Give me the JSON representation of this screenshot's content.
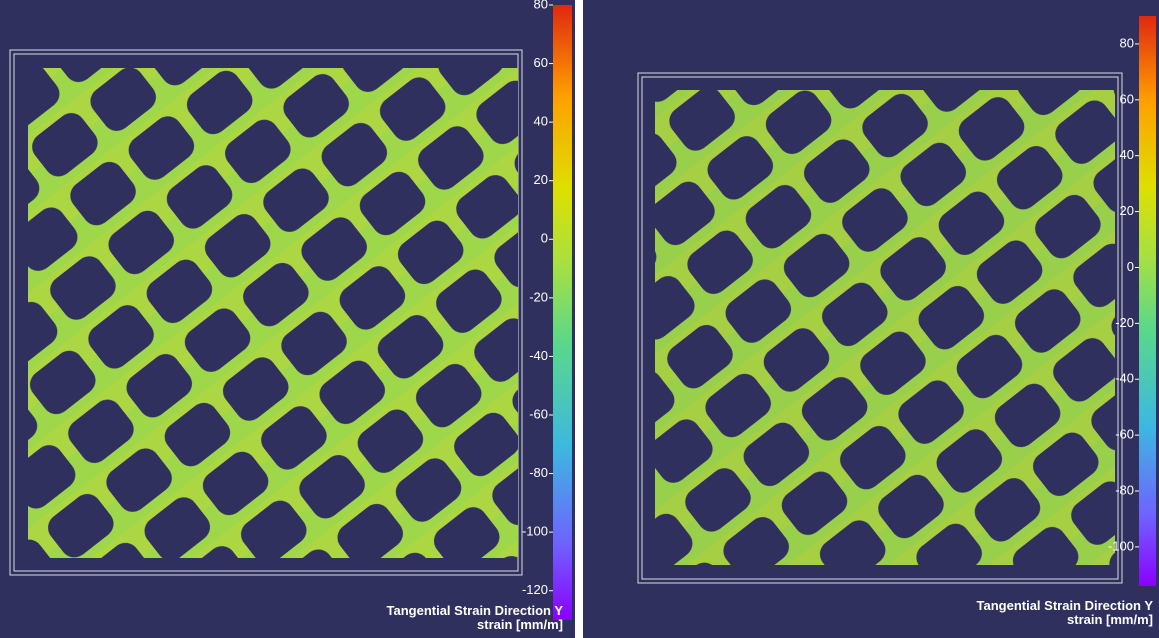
{
  "panels": [
    {
      "colorbar": {
        "range": [
          -130,
          80
        ],
        "ticks": [
          80,
          60,
          40,
          20,
          0,
          -20,
          -40,
          -60,
          -80,
          -100,
          -120
        ]
      },
      "legend_title": "Tangential Strain Direction Y",
      "legend_unit": "strain [mm/m]"
    },
    {
      "colorbar": {
        "range": [
          -114,
          90
        ],
        "ticks": [
          80,
          60,
          40,
          20,
          0,
          -20,
          -40,
          -60,
          -80,
          -100
        ]
      },
      "legend_title": "Tangential Strain Direction Y",
      "legend_unit": "strain [mm/m]"
    }
  ]
}
